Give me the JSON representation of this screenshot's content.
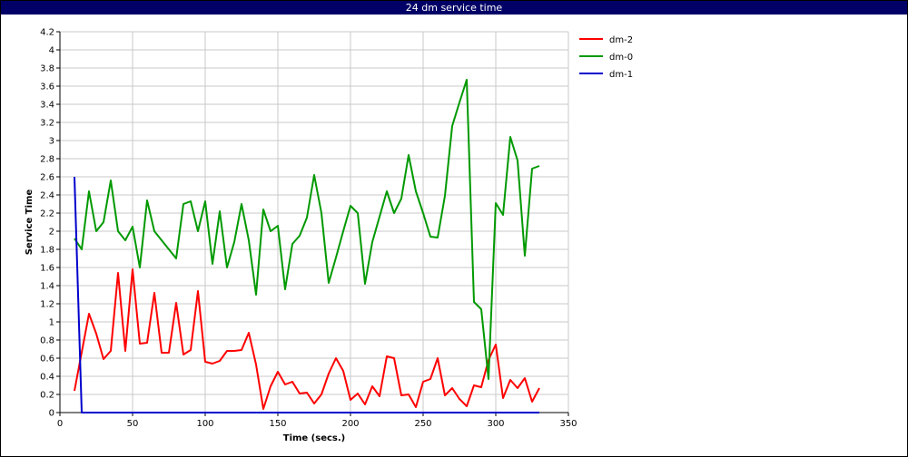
{
  "window": {
    "title": "24 dm service time"
  },
  "chart_data": {
    "type": "line",
    "title": "24 dm service time",
    "xlabel": "Time (secs.)",
    "ylabel": "Service Time",
    "xlim": [
      0,
      350
    ],
    "ylim": [
      0,
      4.2
    ],
    "xticks": [
      0,
      50,
      100,
      150,
      200,
      250,
      300,
      350
    ],
    "yticks": [
      0,
      0.2,
      0.4,
      0.6,
      0.8,
      1,
      1.2,
      1.4,
      1.6,
      1.8,
      2,
      2.2,
      2.4,
      2.6,
      2.8,
      3,
      3.2,
      3.4,
      3.6,
      3.8,
      4,
      4.2
    ],
    "xtick_labels": [
      "0",
      "50",
      "100",
      "150",
      "200",
      "250",
      "300",
      "350"
    ],
    "ytick_labels": [
      "0",
      "0.2",
      "0.4",
      "0.6",
      "0.8",
      "1",
      "1.2",
      "1.4",
      "1.6",
      "1.8",
      "2",
      "2.2",
      "2.4",
      "2.6",
      "2.8",
      "3",
      "3.2",
      "3.4",
      "3.6",
      "3.8",
      "4",
      "4.2"
    ],
    "grid": true,
    "legend_position": "right",
    "series": [
      {
        "name": "dm-2",
        "color": "#ff0000",
        "x": [
          10,
          20,
          25,
          30,
          35,
          40,
          45,
          50,
          55,
          60,
          65,
          70,
          75,
          80,
          85,
          90,
          95,
          100,
          105,
          110,
          115,
          120,
          125,
          130,
          135,
          140,
          145,
          150,
          155,
          160,
          165,
          170,
          175,
          180,
          185,
          190,
          195,
          200,
          205,
          210,
          215,
          220,
          225,
          230,
          235,
          240,
          245,
          250,
          255,
          260,
          265,
          270,
          275,
          280,
          285,
          290,
          295,
          300,
          305,
          310,
          315,
          320,
          325,
          330
        ],
        "y": [
          0.24,
          1.09,
          0.87,
          0.59,
          0.68,
          1.54,
          0.68,
          1.58,
          0.76,
          0.77,
          1.32,
          0.66,
          0.66,
          1.21,
          0.64,
          0.69,
          1.34,
          0.56,
          0.54,
          0.57,
          0.68,
          0.68,
          0.69,
          0.88,
          0.53,
          0.04,
          0.29,
          0.45,
          0.31,
          0.34,
          0.21,
          0.22,
          0.1,
          0.2,
          0.43,
          0.6,
          0.46,
          0.14,
          0.21,
          0.09,
          0.29,
          0.18,
          0.62,
          0.6,
          0.19,
          0.2,
          0.06,
          0.34,
          0.37,
          0.6,
          0.19,
          0.27,
          0.15,
          0.07,
          0.3,
          0.28,
          0.58,
          0.75,
          0.16,
          0.36,
          0.27,
          0.38,
          0.12,
          0.27
        ]
      },
      {
        "name": "dm-0",
        "color": "#009900",
        "x": [
          10,
          15,
          20,
          25,
          30,
          35,
          40,
          45,
          50,
          55,
          60,
          65,
          70,
          75,
          80,
          85,
          90,
          95,
          100,
          105,
          110,
          115,
          120,
          125,
          130,
          135,
          140,
          145,
          150,
          155,
          160,
          165,
          170,
          175,
          180,
          185,
          190,
          195,
          200,
          205,
          210,
          215,
          220,
          225,
          230,
          235,
          240,
          245,
          250,
          255,
          260,
          265,
          270,
          275,
          280,
          285,
          290,
          295,
          300,
          305,
          310,
          315,
          320,
          325,
          330
        ],
        "y": [
          1.92,
          1.8,
          2.44,
          2.0,
          2.1,
          2.56,
          2.0,
          1.9,
          2.05,
          1.6,
          2.34,
          2.0,
          1.9,
          1.8,
          1.7,
          2.3,
          2.33,
          2.0,
          2.33,
          1.64,
          2.22,
          1.6,
          1.88,
          2.3,
          1.9,
          1.3,
          2.24,
          2.0,
          2.06,
          1.36,
          1.86,
          1.95,
          2.15,
          2.62,
          2.2,
          1.43,
          1.71,
          2.0,
          2.28,
          2.2,
          1.42,
          1.88,
          2.16,
          2.44,
          2.2,
          2.36,
          2.84,
          2.44,
          2.2,
          1.94,
          1.93,
          2.39,
          3.16,
          3.42,
          3.67,
          1.22,
          1.14,
          0.37,
          2.31,
          2.18,
          3.04,
          2.78,
          1.73,
          2.69,
          2.72
        ]
      },
      {
        "name": "dm-1",
        "color": "#0000cc",
        "x": [
          10,
          15,
          20,
          40,
          80,
          120,
          160,
          200,
          240,
          280,
          320,
          330
        ],
        "y": [
          2.6,
          0.0,
          0.0,
          0.0,
          0.0,
          0.0,
          0.0,
          0.0,
          0.0,
          0.0,
          0.0,
          0.0
        ]
      }
    ]
  }
}
